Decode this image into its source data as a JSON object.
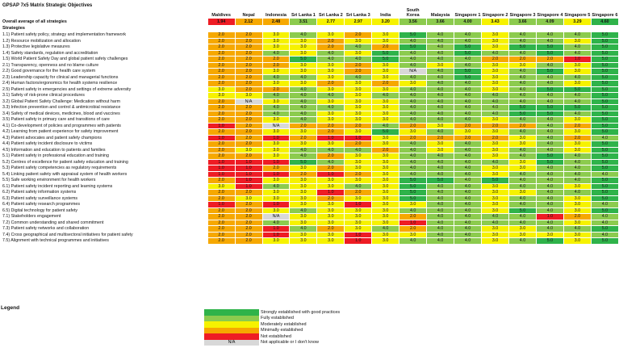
{
  "title": "GPSAP 7x5 Matrix Strategic Objectives",
  "countries": [
    "Maldives",
    "Nepal",
    "Indonesia",
    "Sri Lanka 1",
    "Sri Lanka 2",
    "Sri Lanka 3",
    "India",
    "South Korea",
    "Malaysia",
    "Singapore 1",
    "Singapore 2",
    "Singapore 3",
    "Singapore 4",
    "Singapore 5",
    "Singapore 6"
  ],
  "average_label": "Overall average of all strategies",
  "averages": [
    "1.94",
    "2.12",
    "2.48",
    "3.51",
    "2.77",
    "2.97",
    "3.20",
    "3.56",
    "3.66",
    "4.00",
    "3.43",
    "3.66",
    "4.09",
    "3.29",
    "4.60"
  ],
  "strategies_label": "Strategies",
  "rows": [
    {
      "label": "1.1) Patient safety policy, strategy and implementation framework",
      "values": [
        "2.0",
        "2.0",
        "3.0",
        "4.0",
        "3.0",
        "2.0",
        "3.0",
        "5.0",
        "4.0",
        "4.0",
        "3.0",
        "4.0",
        "4.0",
        "4.0",
        "5.0"
      ]
    },
    {
      "label": "1.2) Resource mobilization and allocation",
      "values": [
        "2.0",
        "2.0",
        "3.0",
        "3.0",
        "2.0",
        "3.0",
        "3.0",
        "4.0",
        "4.0",
        "4.0",
        "3.0",
        "4.0",
        "4.0",
        "3.0",
        "5.0"
      ]
    },
    {
      "label": "1.3) Protective legislative measures",
      "values": [
        "2.0",
        "2.0",
        "3.0",
        "3.0",
        "2.0",
        "4.0",
        "2.0",
        "5.0",
        "4.0",
        "5.0",
        "3.0",
        "5.0",
        "5.0",
        "4.0",
        "5.0"
      ]
    },
    {
      "label": "1.4) Safety standards, regulation and accreditation",
      "values": [
        "2.0",
        "2.0",
        "4.0",
        "3.0",
        "4.0",
        "3.0",
        "5.0",
        "4.0",
        "4.0",
        "5.0",
        "4.0",
        "4.0",
        "5.0",
        "4.0",
        "5.0"
      ]
    },
    {
      "label": "1.5) World Patient Safety Day and global patient safety challenges",
      "values": [
        "2.0",
        "2.0",
        "2.0",
        "5.0",
        "4.0",
        "4.0",
        "5.0",
        "4.0",
        "4.0",
        "4.0",
        "2.0",
        "2.0",
        "2.0",
        "1.0",
        "5.0"
      ]
    },
    {
      "label": "2.1) Transparency, openness and no blame culture",
      "values": [
        "2.0",
        "2.0",
        "2.0",
        "3.0",
        "3.0",
        "2.0",
        "3.0",
        "4.0",
        "3.0",
        "4.0",
        "3.0",
        "3.0",
        "4.0",
        "3.0",
        "5.0"
      ]
    },
    {
      "label": "2.2) Good governance for the health care system",
      "values": [
        "2.0",
        "2.0",
        "3.0",
        "3.0",
        "3.0",
        "2.0",
        "3.0",
        "N/A",
        "4.0",
        "5.0",
        "3.0",
        "4.0",
        "5.0",
        "3.0",
        "5.0"
      ]
    },
    {
      "label": "2.3) Leadership capacity for clinical and managerial functions",
      "values": [
        "2.0",
        "2.0",
        "4.0",
        "4.0",
        "3.0",
        "4.0",
        "3.0",
        "4.0",
        "4.0",
        "5.0",
        "3.0",
        "4.0",
        "4.0",
        "4.0",
        "5.0"
      ]
    },
    {
      "label": "2.4) Human factors/ergonomics for health systems resilience",
      "values": [
        "2.0",
        "2.0",
        "3.0",
        "3.0",
        "2.0",
        "3.0",
        "2.0",
        "3.0",
        "4.0",
        "4.0",
        "3.0",
        "4.0",
        "4.0",
        "3.0",
        "5.0"
      ]
    },
    {
      "label": "2.5) Patient safety in emergencies and settings of extreme adversity",
      "values": [
        "3.0",
        "2.0",
        "2.0",
        "4.0",
        "3.0",
        "3.0",
        "3.0",
        "4.0",
        "4.0",
        "4.0",
        "3.0",
        "4.0",
        "5.0",
        "5.0",
        "5.0"
      ]
    },
    {
      "label": "3.1) Safety of risk-prone clinical procedures",
      "values": [
        "3.0",
        "3.0",
        "4.0",
        "4.0",
        "4.0",
        "3.0",
        "4.0",
        "4.0",
        "4.0",
        "4.0",
        "4.0",
        "4.0",
        "4.0",
        "4.0",
        "5.0"
      ]
    },
    {
      "label": "3.2) Global Patient Safety Challenge: Medication without harm",
      "values": [
        "2.0",
        "N/A",
        "3.0",
        "4.0",
        "3.0",
        "3.0",
        "3.0",
        "4.0",
        "4.0",
        "4.0",
        "4.0",
        "4.0",
        "4.0",
        "4.0",
        "5.0"
      ]
    },
    {
      "label": "3.3) Infection prevention and control & antimicrobial resistance",
      "values": [
        "2.0",
        "2.0",
        "4.0",
        "4.0",
        "4.0",
        "3.0",
        "3.0",
        "4.0",
        "4.0",
        "4.0",
        "4.0",
        "5.0",
        "5.0",
        "5.0",
        "5.0"
      ]
    },
    {
      "label": "3.4) Safety of medical devices, medicines, blood and vaccines",
      "values": [
        "2.0",
        "2.0",
        "4.0",
        "4.0",
        "3.0",
        "3.0",
        "3.0",
        "4.0",
        "4.0",
        "4.0",
        "4.0",
        "5.0",
        "5.0",
        "4.0",
        "5.0"
      ]
    },
    {
      "label": "3.5) Patient safety in primary care and transitions of care",
      "values": [
        "2.0",
        "2.0",
        "3.0",
        "4.0",
        "3.0",
        "3.0",
        "3.0",
        "4.0",
        "4.0",
        "4.0",
        "3.0",
        "4.0",
        "4.0",
        "3.0",
        "5.0"
      ]
    },
    {
      "label": "4.1) Co-development of policies and programmes with patients",
      "values": [
        "1.0",
        "2.0",
        "N/A",
        "2.0",
        "2.0",
        "2.0",
        "4.0",
        "2.0",
        "3.0",
        "2.0",
        "2.0",
        "2.0",
        "4.0",
        "2.0",
        "5.0"
      ]
    },
    {
      "label": "4.2) Learning from patient experience for safety improvement",
      "values": [
        "2.0",
        "2.0",
        "3.0",
        "3.0",
        "2.0",
        "3.0",
        "5.0",
        "3.0",
        "4.0",
        "3.0",
        "3.0",
        "4.0",
        "4.0",
        "3.0",
        "5.0"
      ]
    },
    {
      "label": "4.3) Patient advocates and patient safety champions",
      "values": [
        "1.0",
        "2.0",
        "1.0",
        "2.0",
        "1.0",
        "1.0",
        "3.0",
        "2.0",
        "2.0",
        "2.0",
        "2.0",
        "3.0",
        "4.0",
        "2.0",
        "4.0"
      ]
    },
    {
      "label": "4.4) Patient safety incident disclosure to victims",
      "values": [
        "2.0",
        "2.0",
        "3.0",
        "3.0",
        "3.0",
        "2.0",
        "3.0",
        "4.0",
        "3.0",
        "4.0",
        "3.0",
        "3.0",
        "4.0",
        "3.0",
        "5.0"
      ]
    },
    {
      "label": "4.5) Information and education to patients and families",
      "values": [
        "2.0",
        "3.0",
        "3.0",
        "4.0",
        "4.0",
        "4.0",
        "2.0",
        "4.0",
        "3.0",
        "4.0",
        "3.0",
        "4.0",
        "4.0",
        "3.0",
        "5.0"
      ]
    },
    {
      "label": "5.1) Patient safety in professional education and training",
      "values": [
        "2.0",
        "2.0",
        "3.0",
        "4.0",
        "2.0",
        "3.0",
        "3.0",
        "4.0",
        "4.0",
        "4.0",
        "3.0",
        "4.0",
        "5.0",
        "4.0",
        "5.0"
      ]
    },
    {
      "label": "5.2) Centres of excellence for patient safety education and training",
      "values": [
        "1.0",
        "1.0",
        "1.0",
        "5.0",
        "4.0",
        "3.0",
        "3.0",
        "4.0",
        "4.0",
        "4.0",
        "4.0",
        "3.0",
        "5.0",
        "4.0",
        "5.0"
      ]
    },
    {
      "label": "5.3) Patient safety competencies as regulatory requirements",
      "values": [
        "1.0",
        "1.0",
        "2.0",
        "3.0",
        "2.0",
        "3.0",
        "3.0",
        "4.0",
        "4.0",
        "4.0",
        "3.0",
        "3.0",
        "4.0",
        "4.0",
        "5.0"
      ]
    },
    {
      "label": "5.4) Linking patient safety with appraisal system of health workers",
      "values": [
        "1.0",
        "1.0",
        "1.0",
        "2.0",
        "1.0",
        "2.0",
        "3.0",
        "4.0",
        "4.0",
        "4.0",
        "3.0",
        "4.0",
        "4.0",
        "4.0",
        "4.0"
      ]
    },
    {
      "label": "5.5) Safe working environment for health workers",
      "values": [
        "2.0",
        "1.0",
        "3.0",
        "3.0",
        "3.0",
        "3.0",
        "3.0",
        "5.0",
        "5.0",
        "4.0",
        "5.0",
        "4.0",
        "4.0",
        "4.0",
        "5.0"
      ]
    },
    {
      "label": "6.1) Patient safety incident reporting and learning systems",
      "values": [
        "3.0",
        "1.0",
        "4.0",
        "3.0",
        "3.0",
        "4.0",
        "3.0",
        "5.0",
        "4.0",
        "4.0",
        "3.0",
        "4.0",
        "4.0",
        "3.0",
        "5.0"
      ]
    },
    {
      "label": "6.2) Patient safety information systems",
      "values": [
        "2.0",
        "2.0",
        "3.0",
        "3.0",
        "1.0",
        "2.0",
        "3.0",
        "5.0",
        "4.0",
        "4.0",
        "3.0",
        "3.0",
        "4.0",
        "4.0",
        "5.0"
      ]
    },
    {
      "label": "6.3) Patient safety surveillance systems",
      "values": [
        "2.0",
        "3.0",
        "3.0",
        "3.0",
        "2.0",
        "3.0",
        "3.0",
        "5.0",
        "4.0",
        "4.0",
        "3.0",
        "4.0",
        "4.0",
        "3.0",
        "5.0"
      ]
    },
    {
      "label": "6.4) Patient safety research programmes",
      "values": [
        "1.0",
        "2.0",
        "1.0",
        "3.0",
        "3.0",
        "1.0",
        "3.0",
        "3.0",
        "4.0",
        "4.0",
        "3.0",
        "4.0",
        "4.0",
        "3.0",
        "4.0"
      ]
    },
    {
      "label": "6.5) Digital technology for patient safety",
      "values": [
        "2.0",
        "2.0",
        "3.0",
        "4.0",
        "3.0",
        "3.0",
        "3.0",
        "4.0",
        "4.0",
        "4.0",
        "3.0",
        "5.0",
        "4.0",
        "3.0",
        "5.0"
      ]
    },
    {
      "label": "7.1) Stakeholders engagement",
      "values": [
        "2.0",
        "2.0",
        "N/A",
        "3.0",
        "3.0",
        "3.0",
        "3.0",
        "2.0",
        "4.0",
        "4.0",
        "4.0",
        "4.0",
        "1.0",
        "2.0",
        "4.0"
      ]
    },
    {
      "label": "7.2) Common understanding and shared commitment",
      "values": [
        "2.0",
        "2.0",
        "4.0",
        "3.0",
        "3.0",
        "3.0",
        "3.0",
        "1.0",
        "4.0",
        "4.0",
        "4.0",
        "4.0",
        "4.0",
        "3.0",
        "4.0"
      ]
    },
    {
      "label": "7.3) Patient safety networks and collaboration",
      "values": [
        "2.0",
        "2.0",
        "1.0",
        "4.0",
        "2.0",
        "3.0",
        "4.0",
        "2.0",
        "4.0",
        "4.0",
        "3.0",
        "3.0",
        "4.0",
        "4.0",
        "5.0"
      ]
    },
    {
      "label": "7.4) Cross geographical and multisectoral initiatives for patient safety",
      "values": [
        "2.0",
        "2.0",
        "1.0",
        "3.0",
        "3.0",
        "1.0",
        "3.0",
        "3.0",
        "4.0",
        "4.0",
        "3.0",
        "3.0",
        "3.0",
        "3.0",
        "4.0"
      ]
    },
    {
      "label": "7.5) Alignment with technical programmes and initiatives",
      "values": [
        "2.0",
        "2.0",
        "3.0",
        "3.0",
        "3.0",
        "1.0",
        "3.0",
        "4.0",
        "4.0",
        "4.0",
        "3.0",
        "4.0",
        "5.0",
        "3.0",
        "5.0"
      ]
    }
  ],
  "legend": {
    "title": "Legend",
    "items": [
      {
        "key": "5",
        "label": "Strongly established with good practices"
      },
      {
        "key": "4",
        "label": "Fully established"
      },
      {
        "key": "3",
        "label": "Moderately established"
      },
      {
        "key": "2",
        "label": "Minimally established"
      },
      {
        "key": "1",
        "label": "Not established"
      },
      {
        "key": "na",
        "swatch_text": "N/A",
        "label": "Not applicable or I don't know"
      }
    ]
  }
}
